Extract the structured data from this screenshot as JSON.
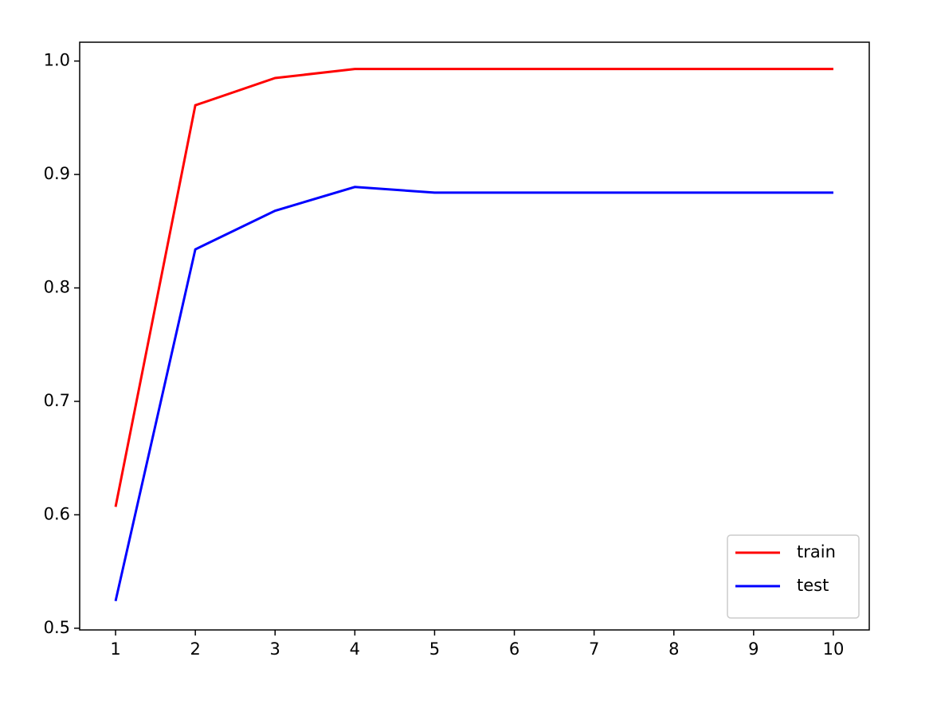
{
  "chart_data": {
    "type": "line",
    "x": [
      1,
      2,
      3,
      4,
      5,
      6,
      7,
      8,
      9,
      10
    ],
    "series": [
      {
        "name": "train",
        "color": "#ff0000",
        "values": [
          0.607,
          0.961,
          0.985,
          0.993,
          0.993,
          0.993,
          0.993,
          0.993,
          0.993,
          0.993
        ]
      },
      {
        "name": "test",
        "color": "#0000ff",
        "values": [
          0.524,
          0.834,
          0.868,
          0.889,
          0.884,
          0.884,
          0.884,
          0.884,
          0.884,
          0.884
        ]
      }
    ],
    "xlim": [
      0.55,
      10.45
    ],
    "xticks": [
      1,
      2,
      3,
      4,
      5,
      6,
      7,
      8,
      9,
      10
    ],
    "ylim": [
      0.4985,
      1.0166
    ],
    "yticks": [
      0.5,
      0.6,
      0.7,
      0.8,
      0.9,
      {
        "value": 1,
        "label": "1.0"
      }
    ],
    "legend": "lower right",
    "grid": false
  }
}
